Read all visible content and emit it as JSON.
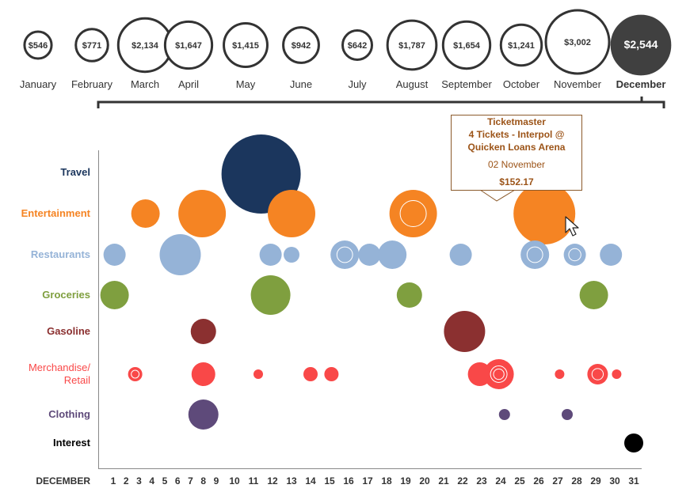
{
  "chart_data": [
    {
      "type": "bubble",
      "title": "",
      "months": [
        {
          "label": "January",
          "value": "$546",
          "amount": 546
        },
        {
          "label": "February",
          "value": "$771",
          "amount": 771
        },
        {
          "label": "March",
          "value": "$2,134",
          "amount": 2134
        },
        {
          "label": "April",
          "value": "$1,647",
          "amount": 1647
        },
        {
          "label": "May",
          "value": "$1,415",
          "amount": 1415
        },
        {
          "label": "June",
          "value": "$942",
          "amount": 942
        },
        {
          "label": "July",
          "value": "$642",
          "amount": 642
        },
        {
          "label": "August",
          "value": "$1,787",
          "amount": 1787
        },
        {
          "label": "September",
          "value": "$1,654",
          "amount": 1654
        },
        {
          "label": "October",
          "value": "$1,241",
          "amount": 1241
        },
        {
          "label": "November",
          "value": "$3,002",
          "amount": 3002
        },
        {
          "label": "December",
          "value": "$2,544",
          "amount": 2544,
          "selected": true
        }
      ]
    },
    {
      "type": "bubble",
      "xlabel": "DECEMBER",
      "x_ticks": [
        "1",
        "2",
        "3",
        "4",
        "5",
        "6",
        "7",
        "8",
        "9",
        "10",
        "11",
        "12",
        "13",
        "14",
        "15",
        "16",
        "17",
        "18",
        "19",
        "20",
        "21",
        "22",
        "23",
        "24",
        "25",
        "26",
        "27",
        "28",
        "29",
        "30",
        "31"
      ],
      "categories": [
        {
          "name": "Travel",
          "color": "#1b365d"
        },
        {
          "name": "Entertainment",
          "color": "#f58423"
        },
        {
          "name": "Restaurants",
          "color": "#95b3d7"
        },
        {
          "name": "Groceries",
          "color": "#7f9f3f"
        },
        {
          "name": "Gasoline",
          "color": "#8b3030"
        },
        {
          "name": "Merchandise/\nRetail",
          "label1": "Merchandise/",
          "label2": "Retail",
          "color": "#f94848"
        },
        {
          "name": "Clothing",
          "color": "#5e4a7a"
        },
        {
          "name": "Interest",
          "color": "#000000"
        }
      ],
      "points": [
        {
          "cat": 0,
          "day": 11.4,
          "size": 2500
        },
        {
          "cat": 1,
          "day": 3.5,
          "size": 324
        },
        {
          "cat": 1,
          "day": 7.9,
          "size": 900
        },
        {
          "cat": 1,
          "day": 13.0,
          "size": 900
        },
        {
          "cat": 1,
          "day": 19.4,
          "size": 900,
          "rings": 1
        },
        {
          "cat": 1,
          "day": 26.3,
          "size": 1521,
          "hovered": true
        },
        {
          "cat": 2,
          "day": 1.1,
          "size": 196
        },
        {
          "cat": 2,
          "day": 6.2,
          "size": 676
        },
        {
          "cat": 2,
          "day": 11.9,
          "size": 196
        },
        {
          "cat": 2,
          "day": 13.0,
          "size": 100
        },
        {
          "cat": 2,
          "day": 15.8,
          "size": 324,
          "rings": 1
        },
        {
          "cat": 2,
          "day": 17.1,
          "size": 196
        },
        {
          "cat": 2,
          "day": 18.3,
          "size": 324
        },
        {
          "cat": 2,
          "day": 21.9,
          "size": 196
        },
        {
          "cat": 2,
          "day": 25.8,
          "size": 324,
          "rings": 1
        },
        {
          "cat": 2,
          "day": 27.9,
          "size": 196,
          "rings": 1
        },
        {
          "cat": 2,
          "day": 29.8,
          "size": 196
        },
        {
          "cat": 3,
          "day": 1.1,
          "size": 324
        },
        {
          "cat": 3,
          "day": 11.9,
          "size": 625
        },
        {
          "cat": 3,
          "day": 19.2,
          "size": 256
        },
        {
          "cat": 3,
          "day": 28.9,
          "size": 324
        },
        {
          "cat": 4,
          "day": 8.0,
          "size": 256
        },
        {
          "cat": 4,
          "day": 22.1,
          "size": 676
        },
        {
          "cat": 5,
          "day": 2.7,
          "size": 81,
          "rings": 1
        },
        {
          "cat": 5,
          "day": 8.0,
          "size": 225
        },
        {
          "cat": 5,
          "day": 11.25,
          "size": 36
        },
        {
          "cat": 5,
          "day": 14.0,
          "size": 81
        },
        {
          "cat": 5,
          "day": 15.1,
          "size": 81
        },
        {
          "cat": 5,
          "day": 22.9,
          "size": 225
        },
        {
          "cat": 5,
          "day": 23.9,
          "size": 361,
          "rings": 2
        },
        {
          "cat": 5,
          "day": 27.1,
          "size": 36
        },
        {
          "cat": 5,
          "day": 29.1,
          "size": 169,
          "rings": 1
        },
        {
          "cat": 5,
          "day": 30.1,
          "size": 36
        },
        {
          "cat": 6,
          "day": 8.0,
          "size": 361
        },
        {
          "cat": 6,
          "day": 24.2,
          "size": 49
        },
        {
          "cat": 6,
          "day": 27.5,
          "size": 49
        },
        {
          "cat": 7,
          "day": 31.0,
          "size": 144
        }
      ]
    }
  ],
  "tooltip": {
    "merchant": "Ticketmaster",
    "line1": "4 Tickets - Interpol @",
    "line2": "Quicken Loans Arena",
    "date": "02 November",
    "amount": "$152.17"
  }
}
